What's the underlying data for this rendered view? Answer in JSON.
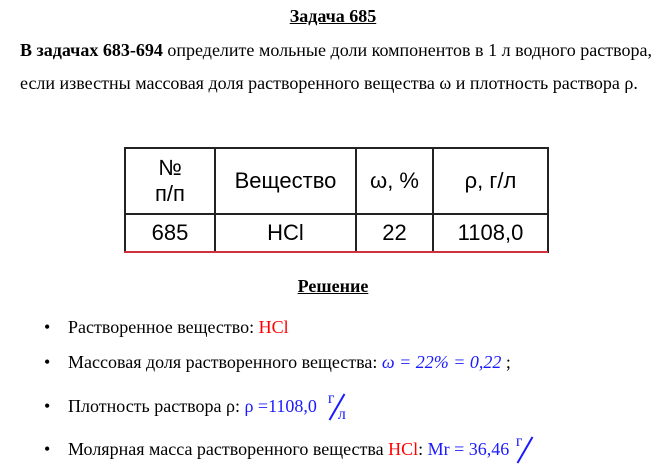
{
  "title": "Задача 685",
  "intro": {
    "bold": "В задачах 683-694",
    "text": " определите мольные доли компонентов в 1 л водного раствора, если известны массовая доля растворенного вещества ω и плотность раствора ρ."
  },
  "table": {
    "headers": [
      "№ п/п",
      "Вещество",
      "ω, %",
      "ρ, г/л"
    ],
    "row": [
      "685",
      "HCl",
      "22",
      "1108,0"
    ]
  },
  "solution_title": "Решение",
  "items": [
    {
      "label": "Растворенное вещество: ",
      "value": "HCl"
    },
    {
      "label": "Массовая доля растворенного вещества: ",
      "formula": "ω = 22% = 0,22",
      "suffix": " ;"
    },
    {
      "label": "Плотность раствора ρ: ",
      "formula": "ρ =1108,0",
      "unit_num": "г",
      "unit_den": "л"
    },
    {
      "label": "Молярная масса растворенного вещества ",
      "value": "HCl",
      "sep": ": ",
      "formula": "Mr = 36,46",
      "unit_num": "г"
    }
  ],
  "colors": {
    "substance": "#ff0000",
    "formula": "#1a1aff",
    "table_underline": "#d03040"
  }
}
